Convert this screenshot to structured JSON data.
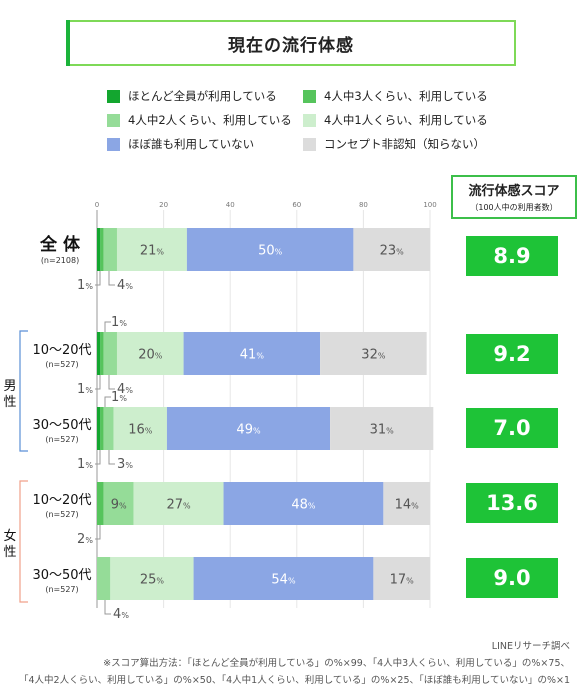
{
  "title": "現在の流行体感",
  "legend": [
    {
      "label": "ほとんど全員が利用している",
      "color": "#13a62f"
    },
    {
      "label": "4人中3人くらい、利用している",
      "color": "#56c45c"
    },
    {
      "label": "4人中2人くらい、利用している",
      "color": "#95dc98"
    },
    {
      "label": "4人中1人くらい、利用している",
      "color": "#cdeecd"
    },
    {
      "label": "ほぼ誰も利用していない",
      "color": "#8ba6e4"
    },
    {
      "label": "コンセプト非認知（知らない）",
      "color": "#dcdcdc"
    }
  ],
  "score_header": {
    "title": "流行体感スコア",
    "subtitle": "（100人中の利用者数）"
  },
  "group_labels": {
    "male": "男性",
    "female": "女性"
  },
  "chart_data": {
    "type": "bar",
    "orientation": "horizontal",
    "stacked": true,
    "xlim": [
      0,
      100
    ],
    "xticks": [
      "0",
      "20",
      "40",
      "60",
      "80",
      "100"
    ],
    "categories": [
      {
        "label": "全 体",
        "n": "(n=2108)",
        "group": ""
      },
      {
        "label": "10〜20代",
        "n": "(n=527)",
        "group": "男性"
      },
      {
        "label": "30〜50代",
        "n": "(n=527)",
        "group": "男性"
      },
      {
        "label": "10〜20代",
        "n": "(n=527)",
        "group": "女性"
      },
      {
        "label": "30〜50代",
        "n": "(n=527)",
        "group": "女性"
      }
    ],
    "series": [
      {
        "name": "ほとんど全員が利用している",
        "values": [
          1,
          1,
          1,
          0,
          0
        ]
      },
      {
        "name": "4人中3人くらい、利用している",
        "values": [
          1,
          1,
          1,
          2,
          0
        ]
      },
      {
        "name": "4人中2人くらい、利用している",
        "values": [
          4,
          4,
          3,
          9,
          4
        ]
      },
      {
        "name": "4人中1人くらい、利用している",
        "values": [
          21,
          20,
          16,
          27,
          25
        ]
      },
      {
        "name": "ほぼ誰も利用していない",
        "values": [
          50,
          41,
          49,
          48,
          54
        ]
      },
      {
        "name": "コンセプト非認知（知らない）",
        "values": [
          23,
          32,
          31,
          14,
          17
        ]
      }
    ],
    "inside_labels": [
      [
        "",
        "",
        "",
        "21",
        "50",
        "23"
      ],
      [
        "",
        "",
        "",
        "20",
        "41",
        "32"
      ],
      [
        "",
        "",
        "",
        "16",
        "49",
        "31"
      ],
      [
        "",
        "",
        "9",
        "27",
        "48",
        "14"
      ],
      [
        "",
        "",
        "",
        "25",
        "54",
        "17"
      ]
    ],
    "callouts": [
      {
        "row": 0,
        "above": [],
        "below": [
          "1",
          "4"
        ]
      },
      {
        "row": 1,
        "above": [
          "1"
        ],
        "below": [
          "1",
          "4"
        ]
      },
      {
        "row": 2,
        "above": [
          "1"
        ],
        "below": [
          "1",
          "3"
        ]
      },
      {
        "row": 3,
        "above": [],
        "below": [
          "2"
        ]
      },
      {
        "row": 4,
        "above": [],
        "below": [
          "4"
        ]
      }
    ],
    "unit": "%",
    "scores": [
      "8.9",
      "9.2",
      "7.0",
      "13.6",
      "9.0"
    ]
  },
  "footer": {
    "source": "LINEリサーチ調べ",
    "note1": "※スコア算出方法：「ほとんど全員が利用している」の%×99、「4人中3人くらい、利用している」の%×75、",
    "note2": "「4人中2人くらい、利用している」の%×50、「4人中1人くらい、利用している」の%×25、「ほぼ誰も利用していない」の%×1"
  }
}
